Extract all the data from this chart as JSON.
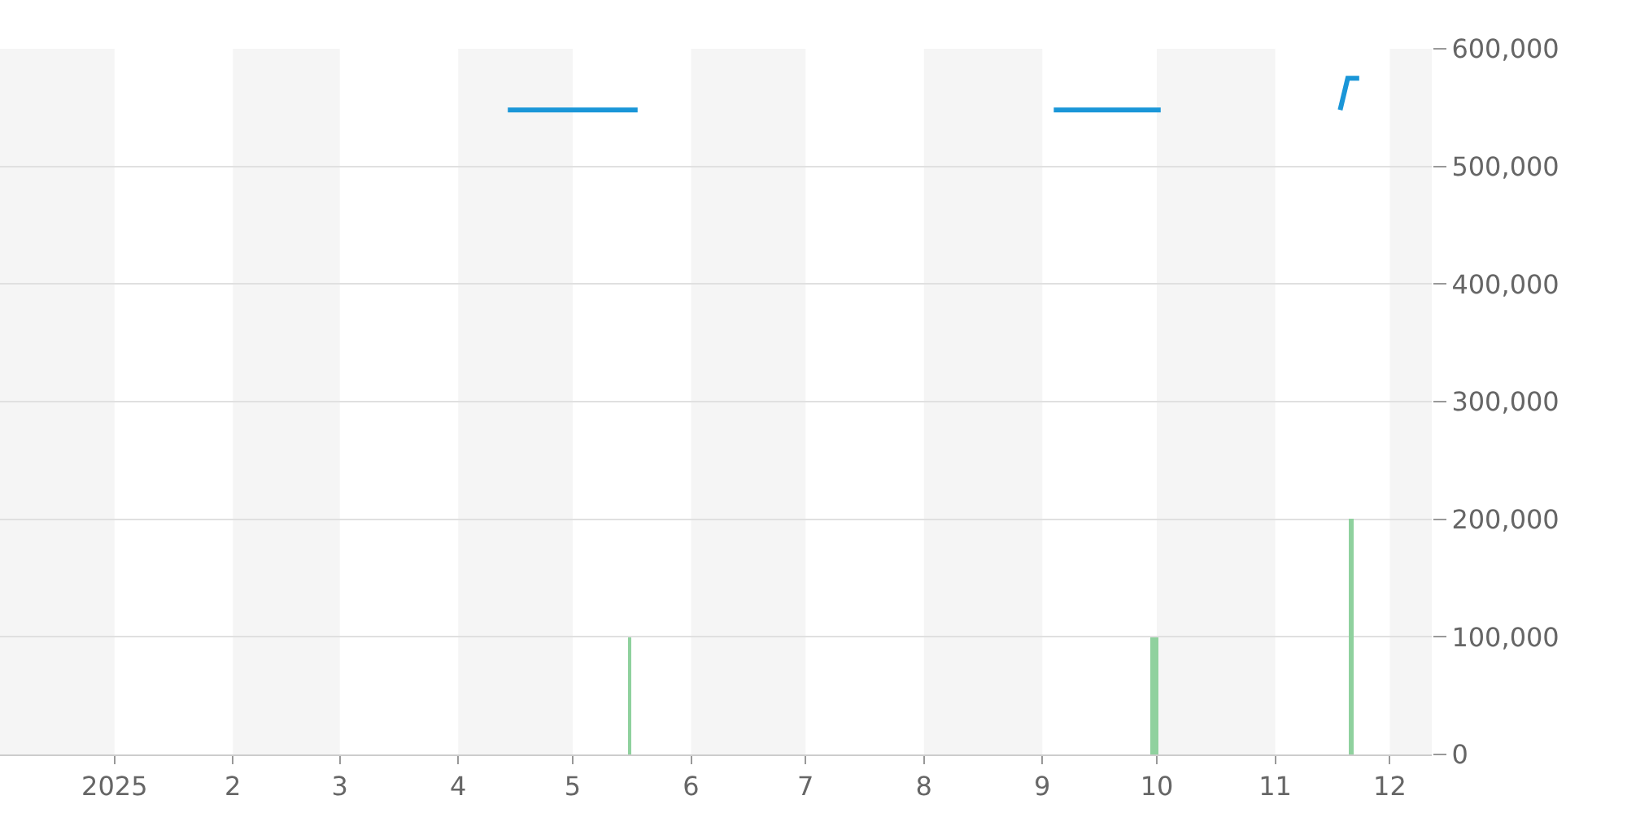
{
  "chart_data": {
    "type": "line",
    "xlim": [
      "2024-12-02",
      "2025-12-12"
    ],
    "xticks": [
      {
        "value": "2025-01-01",
        "label": "2025"
      },
      {
        "value": "2025-02-01",
        "label": "2"
      },
      {
        "value": "2025-03-01",
        "label": "3"
      },
      {
        "value": "2025-04-01",
        "label": "4"
      },
      {
        "value": "2025-05-01",
        "label": "5"
      },
      {
        "value": "2025-06-01",
        "label": "6"
      },
      {
        "value": "2025-07-01",
        "label": "7"
      },
      {
        "value": "2025-08-01",
        "label": "8"
      },
      {
        "value": "2025-09-01",
        "label": "9"
      },
      {
        "value": "2025-10-01",
        "label": "10"
      },
      {
        "value": "2025-11-01",
        "label": "11"
      },
      {
        "value": "2025-12-01",
        "label": "12"
      }
    ],
    "ylim": [
      0,
      600000
    ],
    "yticks": [
      {
        "value": 0,
        "label": "0"
      },
      {
        "value": 100000,
        "label": "100,000"
      },
      {
        "value": 200000,
        "label": "200,000"
      },
      {
        "value": 300000,
        "label": "300,000"
      },
      {
        "value": 400000,
        "label": "400,000"
      },
      {
        "value": 500000,
        "label": "500,000"
      },
      {
        "value": 600000,
        "label": "600,000"
      }
    ],
    "grid": "y",
    "series": [
      {
        "type": "bar",
        "color": "#8fd19e",
        "x": [
          "2025-05-16",
          "2025-09-30",
          "2025-10-01",
          "2025-11-21"
        ],
        "values": [
          100000,
          100000,
          100000,
          200000
        ]
      },
      {
        "color": "#1a96d8",
        "x": [
          "2025-04-14",
          "2025-05-18",
          "2025-05-19",
          "2025-09-04",
          "2025-10-02",
          "2025-10-03",
          "2025-11-18",
          "2025-11-20",
          "2025-11-23"
        ],
        "values": [
          548000,
          548000,
          null,
          548000,
          548000,
          null,
          548000,
          575000,
          575000
        ]
      }
    ],
    "bands": [
      {
        "axis": "x",
        "from": "2024-12-02",
        "to": "2025-01-01",
        "color": "#f5f5f5"
      },
      {
        "axis": "x",
        "from": "2025-02-01",
        "to": "2025-03-01",
        "color": "#f5f5f5"
      },
      {
        "axis": "x",
        "from": "2025-04-01",
        "to": "2025-05-01",
        "color": "#f5f5f5"
      },
      {
        "axis": "x",
        "from": "2025-06-01",
        "to": "2025-07-01",
        "color": "#f5f5f5"
      },
      {
        "axis": "x",
        "from": "2025-08-01",
        "to": "2025-09-01",
        "color": "#f5f5f5"
      },
      {
        "axis": "x",
        "from": "2025-10-01",
        "to": "2025-11-01",
        "color": "#f5f5f5"
      },
      {
        "axis": "x",
        "from": "2025-12-01",
        "to": "2025-12-12",
        "color": "#f5f5f5"
      }
    ]
  }
}
